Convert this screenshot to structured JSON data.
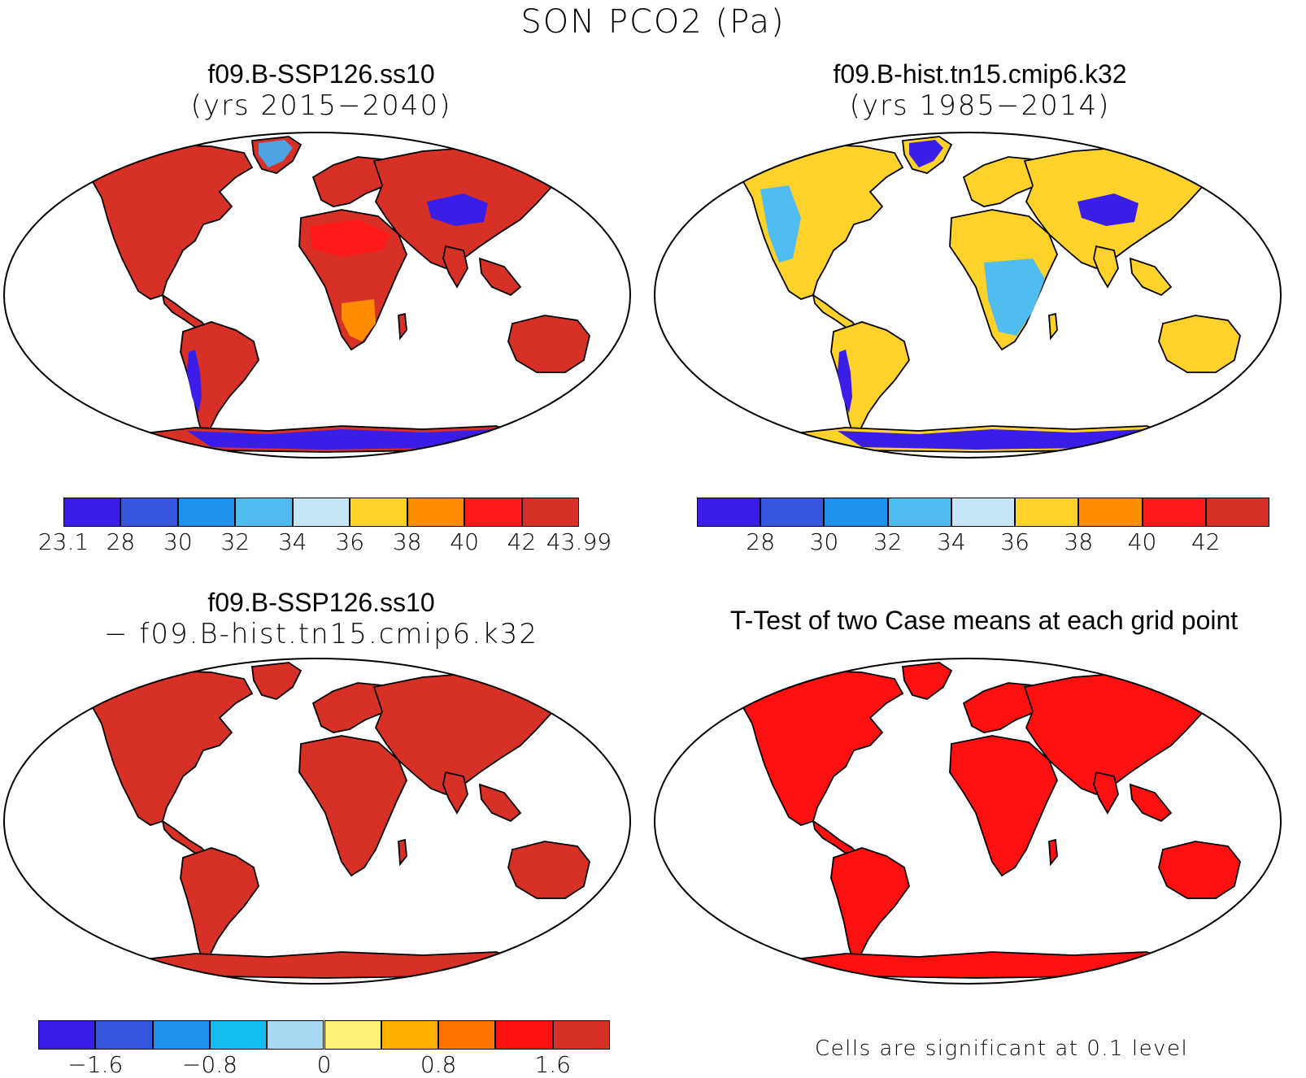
{
  "title": "SON PCO2 (Pa)",
  "panels": [
    {
      "id": "top-left",
      "title_line1": "f09.B-SSP126.ss10",
      "title_line2": "(yrs 2015−2040)",
      "land_color": "#d73027",
      "regions": [
        {
          "name": "greenland",
          "color": "#4fa3e3"
        },
        {
          "name": "tibet",
          "color": "#3a1ee8"
        },
        {
          "name": "andes",
          "color": "#3a1ee8"
        },
        {
          "name": "antarctica",
          "color": "#3a1ee8"
        },
        {
          "name": "sahara",
          "color": "#ff1a1a"
        },
        {
          "name": "southern-africa",
          "color": "#ff8c00"
        }
      ],
      "colorbar": {
        "colors": [
          "#3a1ee8",
          "#3656dd",
          "#1e90ee",
          "#4fbdf0",
          "#c6e6f6",
          "#ffd12b",
          "#ff8c00",
          "#ff1a1a",
          "#d73027"
        ],
        "labels": [
          "23.1",
          "28",
          "30",
          "32",
          "34",
          "36",
          "38",
          "40",
          "42",
          "43.99"
        ]
      }
    },
    {
      "id": "top-right",
      "title_line1": "f09.B-hist.tn15.cmip6.k32",
      "title_line2": "(yrs 1985−2014)",
      "land_color": "#ffd12b",
      "regions": [
        {
          "name": "greenland",
          "color": "#3a1ee8"
        },
        {
          "name": "tibet",
          "color": "#3a1ee8"
        },
        {
          "name": "andes",
          "color": "#3a1ee8"
        },
        {
          "name": "antarctica",
          "color": "#3a1ee8"
        },
        {
          "name": "central-africa",
          "color": "#4fbdf0"
        },
        {
          "name": "north-america-west",
          "color": "#4fbdf0"
        }
      ],
      "colorbar": {
        "colors": [
          "#3a1ee8",
          "#3656dd",
          "#1e90ee",
          "#4fbdf0",
          "#c6e6f6",
          "#ffd12b",
          "#ff8c00",
          "#ff1a1a",
          "#d73027"
        ],
        "labels": [
          "28",
          "30",
          "32",
          "34",
          "36",
          "38",
          "40",
          "42"
        ]
      }
    },
    {
      "id": "bottom-left",
      "title_line1": "f09.B-SSP126.ss10",
      "title_line2": "− f09.B-hist.tn15.cmip6.k32",
      "land_color": "#d73027",
      "colorbar": {
        "colors": [
          "#3a1ee8",
          "#3656dd",
          "#1e90ee",
          "#14bdf0",
          "#a8d8f2",
          "#fff27a",
          "#ffb300",
          "#ff7300",
          "#ff1010",
          "#d73027"
        ],
        "labels": [
          "−1.6",
          "−0.8",
          "0",
          "0.8",
          "1.6"
        ]
      }
    },
    {
      "id": "bottom-right",
      "title_line1": "T-Test of two Case means at each grid point",
      "land_color": "#ff1010",
      "note": "Cells are significant at 0.1 level"
    }
  ]
}
